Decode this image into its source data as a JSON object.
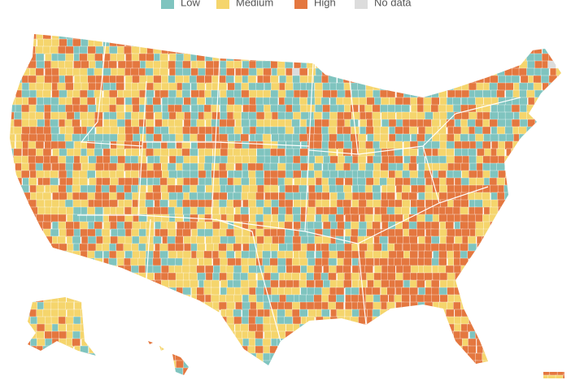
{
  "legend": {
    "items": [
      {
        "label": "Low",
        "color": "#7fc4bf"
      },
      {
        "label": "Medium",
        "color": "#f5d56c"
      },
      {
        "label": "High",
        "color": "#e4773f"
      },
      {
        "label": "No data",
        "color": "#dcdcdc"
      }
    ]
  }
}
